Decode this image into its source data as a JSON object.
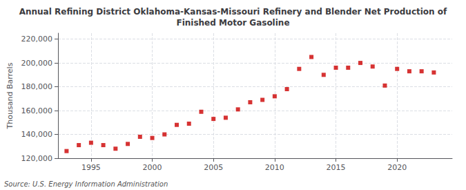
{
  "chart_data": {
    "type": "scatter",
    "title": "Annual Refining District Oklahoma-Kansas-Missouri Refinery and Blender Net Production of\nFinished Motor Gasoline",
    "ylabel": "Thousand Barrels",
    "annotations": [
      "Source: U.S. Energy Information Administration"
    ],
    "x": [
      1993,
      1994,
      1995,
      1996,
      1997,
      1998,
      1999,
      2000,
      2001,
      2002,
      2003,
      2004,
      2005,
      2006,
      2007,
      2008,
      2009,
      2010,
      2011,
      2012,
      2013,
      2014,
      2015,
      2016,
      2017,
      2018,
      2019,
      2020,
      2021,
      2022,
      2023
    ],
    "values": [
      126000,
      131000,
      133000,
      131000,
      128000,
      132000,
      138000,
      137000,
      140000,
      148000,
      149000,
      159000,
      153000,
      154000,
      161000,
      167000,
      169000,
      172000,
      178000,
      195000,
      205000,
      190000,
      196000,
      196000,
      200000,
      197000,
      181000,
      195000,
      193000,
      193000,
      192000
    ],
    "color": "#cc0000",
    "marker": "square",
    "xlim": [
      1992.3,
      2024.5
    ],
    "xticks": [
      1995,
      2000,
      2005,
      2010,
      2015,
      2020
    ],
    "ylim": [
      120000,
      225000
    ],
    "yticks": [
      {
        "value": 120000,
        "label": "120,000"
      },
      {
        "value": 140000,
        "label": "140,000"
      },
      {
        "value": 160000,
        "label": "160,000"
      },
      {
        "value": 180000,
        "label": "180,000"
      },
      {
        "value": 200000,
        "label": "200,000"
      },
      {
        "value": 220000,
        "label": "220,000"
      }
    ],
    "grid": true
  }
}
